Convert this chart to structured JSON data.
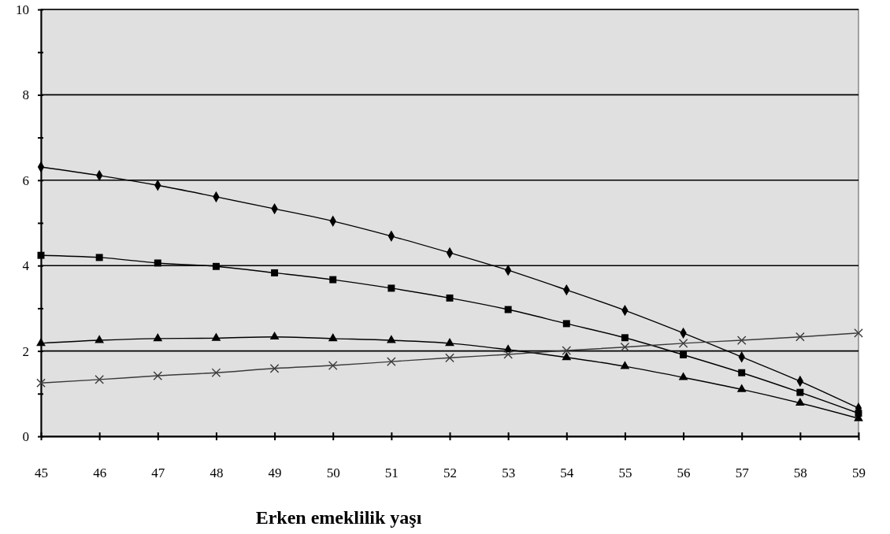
{
  "chart_data": {
    "type": "line",
    "xlabel": "Erken emeklilik yaşı",
    "x": [
      45,
      46,
      47,
      48,
      49,
      50,
      51,
      52,
      53,
      54,
      55,
      56,
      57,
      58,
      59
    ],
    "xlim": [
      45,
      59
    ],
    "xticks": [
      45,
      46,
      47,
      48,
      49,
      50,
      51,
      52,
      53,
      54,
      55,
      56,
      57,
      58,
      59
    ],
    "ylim": [
      0,
      10
    ],
    "yticks": [
      0,
      {
        "value": 1,
        "label": null
      },
      2,
      {
        "value": 3,
        "label": null
      },
      4,
      {
        "value": 5,
        "label": null
      },
      6,
      {
        "value": 7,
        "label": null
      },
      8,
      {
        "value": 9,
        "label": null
      },
      10
    ],
    "grid": "y",
    "series": [
      {
        "color": "#000000",
        "marker": "diamond",
        "values": [
          6.31,
          6.11,
          5.88,
          5.61,
          5.33,
          5.04,
          4.69,
          4.3,
          3.89,
          3.43,
          2.95,
          2.42,
          1.86,
          1.29,
          0.66
        ]
      },
      {
        "color": "#000000",
        "marker": "square",
        "values": [
          4.24,
          4.19,
          4.06,
          3.98,
          3.83,
          3.67,
          3.47,
          3.24,
          2.97,
          2.64,
          2.31,
          1.91,
          1.49,
          1.03,
          0.54
        ]
      },
      {
        "color": "#000000",
        "marker": "triangle",
        "values": [
          2.18,
          2.25,
          2.29,
          2.3,
          2.33,
          2.29,
          2.25,
          2.18,
          2.03,
          1.85,
          1.64,
          1.38,
          1.1,
          0.78,
          0.42
        ]
      },
      {
        "color": "#3a3a3a",
        "marker": "cross",
        "values": [
          1.25,
          1.33,
          1.42,
          1.49,
          1.59,
          1.66,
          1.75,
          1.84,
          1.92,
          2.01,
          2.09,
          2.18,
          2.25,
          2.33,
          2.42
        ]
      }
    ]
  }
}
